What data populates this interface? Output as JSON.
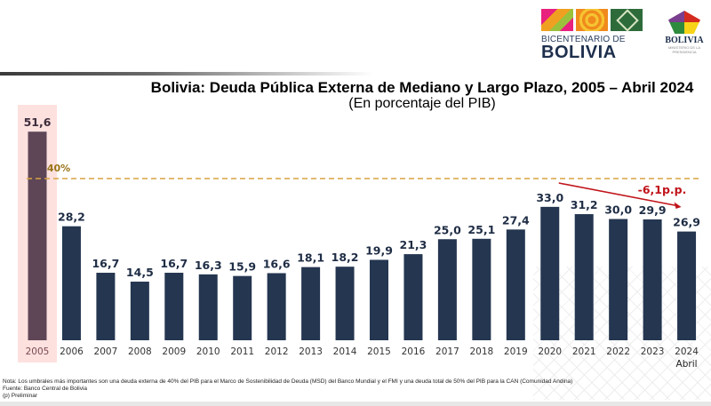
{
  "header": {
    "logo_bicentenario": {
      "line1": "BICENTENARIO DE",
      "line2": "BOLIVIA"
    },
    "logo_gobierno": {
      "name": "BOLIVIA",
      "subtitle": "MINISTERIO DE LA PRESIDENCIA"
    }
  },
  "chart_data": {
    "type": "bar",
    "title": "Bolivia: Deuda Pública Externa de Mediano y Largo Plazo, 2005 – Abril 2024",
    "subtitle": "(En porcentaje del PIB)",
    "xlabel": "",
    "ylabel": "",
    "categories": [
      "2005",
      "2006",
      "2007",
      "2008",
      "2009",
      "2010",
      "2011",
      "2012",
      "2013",
      "2014",
      "2015",
      "2016",
      "2017",
      "2018",
      "2019",
      "2020",
      "2021",
      "2022",
      "2023",
      "2024"
    ],
    "category_sublabels": {
      "2024": "Abril"
    },
    "values": [
      51.6,
      28.2,
      16.7,
      14.5,
      16.7,
      16.3,
      15.9,
      16.6,
      18.1,
      18.2,
      19.9,
      21.3,
      25.0,
      25.1,
      27.4,
      33.0,
      31.2,
      30.0,
      29.9,
      26.9
    ],
    "value_labels": [
      "51,6",
      "28,2",
      "16,7",
      "14,5",
      "16,7",
      "16,3",
      "15,9",
      "16,6",
      "18,1",
      "18,2",
      "19,9",
      "21,3",
      "25,0",
      "25,1",
      "27,4",
      "33,0",
      "31,2",
      "30,0",
      "29,9",
      "26,9"
    ],
    "ylim": [
      0,
      55
    ],
    "grid": false,
    "highlighted_category": "2005",
    "colors": {
      "bar": "#243650",
      "highlight_bar": "#5e4656",
      "highlight_bg": "#fde1df",
      "threshold": "#d9a441",
      "annotation": "#c0141a",
      "label": "#1f2d45"
    },
    "threshold": {
      "value": 40,
      "label": "40%"
    },
    "annotation": {
      "text": "-6,1p.p.",
      "from_category": "2020",
      "to_category": "2024"
    }
  },
  "notes": {
    "nota": "Nota: Los umbrales más importantes son una deuda externa de 40% del PIB para el Marco de Sostenibilidad de Deuda (MSD) del Banco Mundial y el FMI y una deuda total de 50% del PIB para la CAN (Comunidad Andina)",
    "fuente": "Fuente: Banco Central de Bolivia",
    "preliminar": "(p) Preliminar"
  }
}
